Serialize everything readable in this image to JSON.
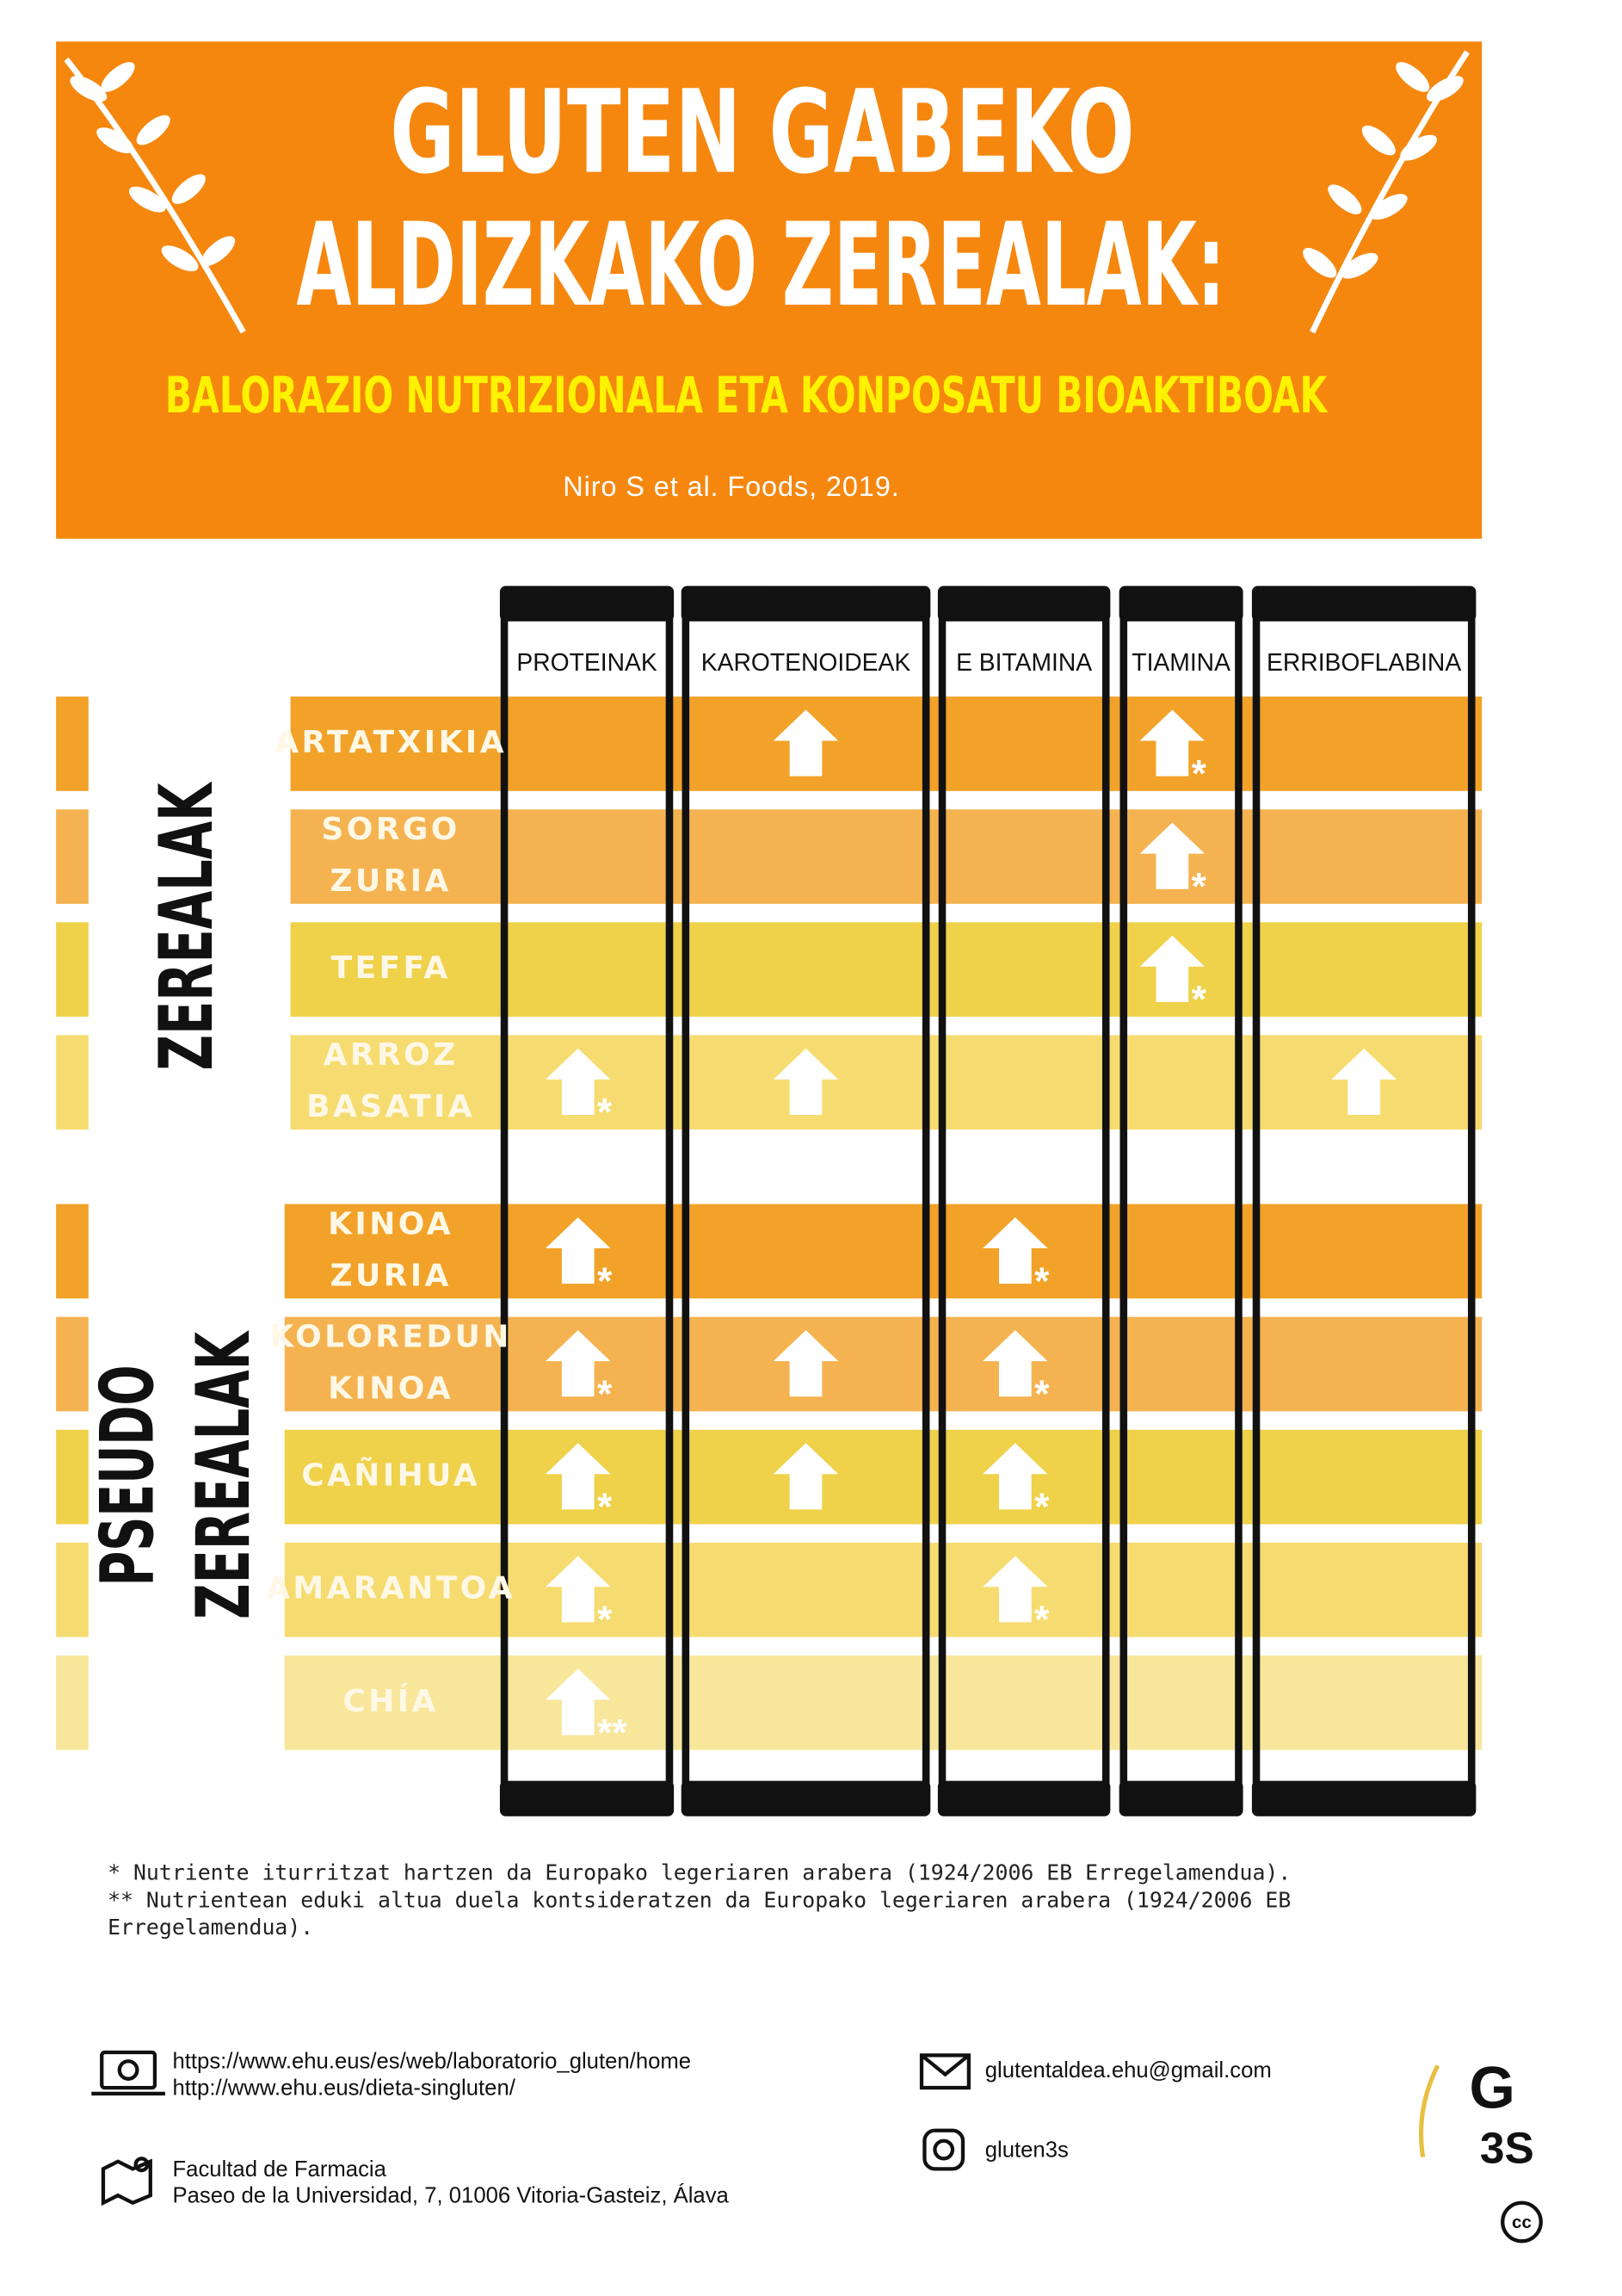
{
  "header": {
    "title": [
      "GLUTEN GABEKO",
      "ALDIZKAKO ZEREALAK:"
    ],
    "subtitle": "BALORAZIO NUTRIZIONALA ETA KONPOSATU BIOAKTIBOAK",
    "citation": "Niro S  et al. Foods, 2019."
  },
  "table": {
    "columns": [
      "PROTEINAK",
      "KAROTENOIDEAK",
      "E BITAMINA",
      "TIAMINA",
      "ERRIBOFLABINA"
    ],
    "groups": [
      {
        "label": [
          "ZEREALAK"
        ],
        "rows": [
          {
            "label": [
              "ARTATXIKIA"
            ],
            "cells": [
              null,
              {
                "arrow": true
              },
              null,
              {
                "arrow": true,
                "note": "*"
              },
              null
            ]
          },
          {
            "label": [
              "SORGO",
              "ZURIA"
            ],
            "cells": [
              null,
              null,
              null,
              {
                "arrow": true,
                "note": "*"
              },
              null
            ]
          },
          {
            "label": [
              "TEFFA"
            ],
            "cells": [
              null,
              null,
              null,
              {
                "arrow": true,
                "note": "*"
              },
              null
            ]
          },
          {
            "label": [
              "ARROZ",
              "BASATIA"
            ],
            "cells": [
              {
                "arrow": true,
                "note": "*"
              },
              {
                "arrow": true
              },
              null,
              null,
              {
                "arrow": true
              }
            ]
          }
        ]
      },
      {
        "label": [
          "PSEUDO",
          "ZEREALAK"
        ],
        "rows": [
          {
            "label": [
              "KINOA",
              "ZURIA"
            ],
            "cells": [
              {
                "arrow": true,
                "note": "*"
              },
              null,
              {
                "arrow": true,
                "note": "*"
              },
              null,
              null
            ]
          },
          {
            "label": [
              "KOLOREDUN",
              "KINOA"
            ],
            "cells": [
              {
                "arrow": true,
                "note": "*"
              },
              {
                "arrow": true
              },
              {
                "arrow": true,
                "note": "*"
              },
              null,
              null
            ]
          },
          {
            "label": [
              "CAÑIHUA"
            ],
            "cells": [
              {
                "arrow": true,
                "note": "*"
              },
              {
                "arrow": true
              },
              {
                "arrow": true,
                "note": "*"
              },
              null,
              null
            ]
          },
          {
            "label": [
              "AMARANTOA"
            ],
            "cells": [
              {
                "arrow": true,
                "note": "*"
              },
              null,
              {
                "arrow": true,
                "note": "*"
              },
              null,
              null
            ]
          },
          {
            "label": [
              "CHÍA"
            ],
            "cells": [
              {
                "arrow": true,
                "note": "**"
              },
              null,
              null,
              null,
              null
            ]
          }
        ]
      }
    ]
  },
  "footnotes": [
    [
      "* Nutriente iturritzat hartzen da Europako legeriaren arabera (1924/2006 EB Erregelamendua)."
    ],
    [
      "** Nutrientean eduki altua duela kontsideratzen da Europako legeriaren arabera (1924/2006 EB",
      "Erregelamendua)."
    ]
  ],
  "contact": {
    "urls": [
      "https://www.ehu.eus/es/web/laboratorio_gluten/home",
      "http://www.ehu.eus/dieta-singluten/"
    ],
    "address": [
      "Facultad de Farmacia",
      "Paseo de la Universidad, 7, 01006 Vitoria-Gasteiz, Álava"
    ],
    "email": "glutentaldea.ehu@gmail.com",
    "instagram": "gluten3s"
  },
  "logo": [
    "G",
    "3S"
  ],
  "license": "cc"
}
